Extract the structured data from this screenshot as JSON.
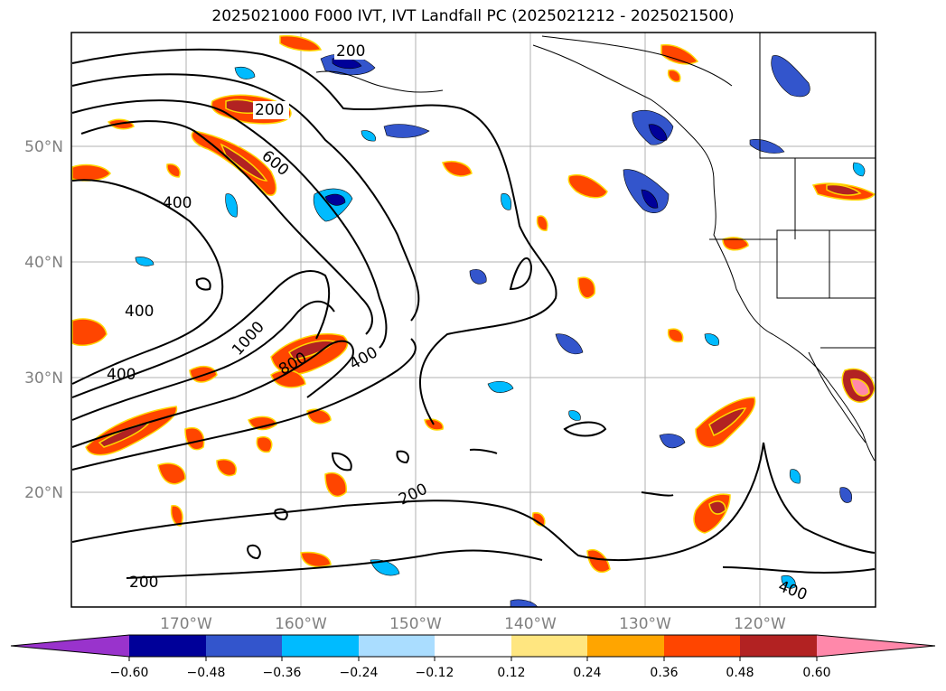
{
  "title": "2025021000 F000 IVT, IVT Landfall PC (2025021212 - 2025021500)",
  "map": {
    "lat_labels": [
      "20°N",
      "30°N",
      "40°N",
      "50°N"
    ],
    "lon_labels": [
      "170°W",
      "160°W",
      "150°W",
      "140°W",
      "130°W",
      "120°W"
    ],
    "contour_labels": [
      "200",
      "200",
      "600",
      "400",
      "400",
      "400",
      "1000",
      "800",
      "400",
      "200",
      "200",
      "400"
    ]
  },
  "colorbar": {
    "ticks": [
      "−0.60",
      "−0.48",
      "−0.36",
      "−0.24",
      "−0.12",
      "0.12",
      "0.24",
      "0.36",
      "0.48",
      "0.60"
    ],
    "colors": [
      "#9933cc",
      "#000099",
      "#3355cc",
      "#00bbff",
      "#aaddff",
      "#ffffff",
      "#ffe680",
      "#ffa500",
      "#ff4500",
      "#b22222",
      "#ff88aa"
    ]
  }
}
